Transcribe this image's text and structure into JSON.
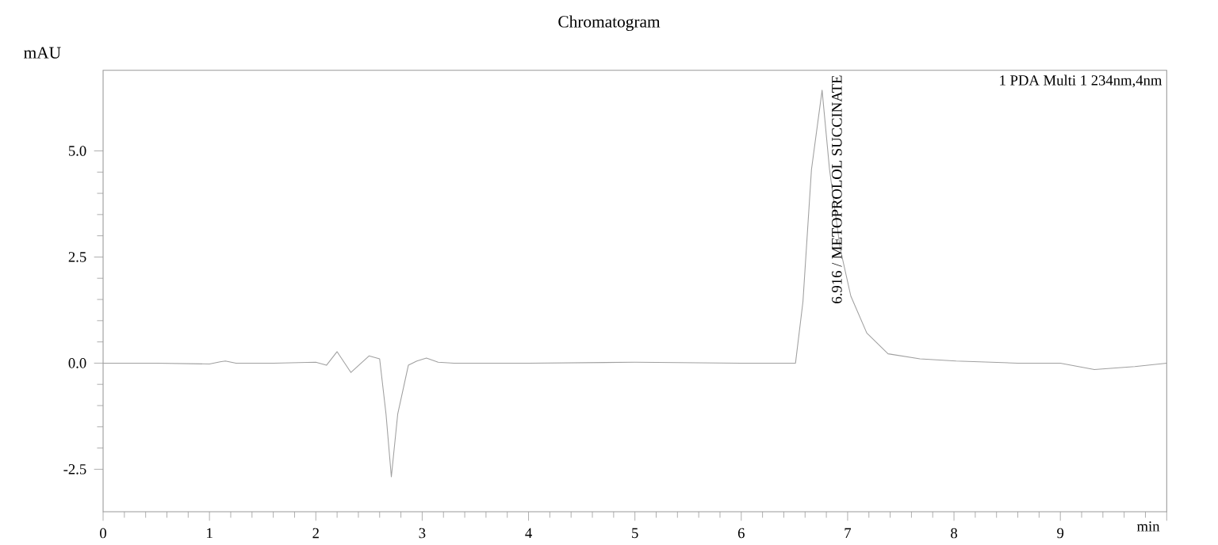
{
  "chart_data": {
    "type": "line",
    "title": "Chromatogram",
    "xlabel": "min",
    "ylabel": "mAU",
    "x": [
      0,
      0.5,
      1.0,
      1.1,
      1.15,
      1.25,
      1.6,
      2.0,
      2.1,
      2.2,
      2.33,
      2.5,
      2.6,
      2.66,
      2.71,
      2.77,
      2.87,
      2.95,
      3.04,
      3.15,
      3.3,
      4.0,
      5.0,
      6.0,
      6.51,
      6.58,
      6.66,
      6.76,
      6.83,
      6.93,
      7.03,
      7.18,
      7.38,
      7.68,
      8.02,
      8.6,
      9.0,
      9.32,
      9.7,
      10.0
    ],
    "series": [
      {
        "color": "#a0a0a0",
        "values": [
          0,
          0,
          -0.02,
          0.03,
          0.05,
          0.0,
          0,
          0.02,
          -0.05,
          0.27,
          -0.22,
          0.17,
          0.1,
          -1.2,
          -2.68,
          -1.2,
          -0.05,
          0.05,
          0.12,
          0.02,
          0,
          0,
          0.02,
          0,
          0,
          1.45,
          4.56,
          6.43,
          4.56,
          2.7,
          1.58,
          0.71,
          0.22,
          0.1,
          0.05,
          0,
          0,
          -0.15,
          -0.08,
          0
        ]
      }
    ],
    "annotations": [
      "6.916 / METOPROLOL SUCCINATE",
      "1 PDA Multi 1 234nm,4nm"
    ],
    "xlim": [
      0,
      10
    ],
    "ylim": [
      -3.5,
      6.9
    ],
    "xticks": [
      0,
      1,
      2,
      3,
      4,
      5,
      6,
      7,
      8,
      9,
      {
        "value": 10,
        "label": null
      }
    ],
    "yticks": [
      {
        "value": -2.5,
        "label": "-2.5"
      },
      {
        "value": 0,
        "label": "0.0"
      },
      {
        "value": 2.5,
        "label": "2.5"
      },
      {
        "value": 5,
        "label": "5.0"
      }
    ],
    "grid": false,
    "legend": false,
    "marker": "none",
    "line_style": "solid"
  }
}
